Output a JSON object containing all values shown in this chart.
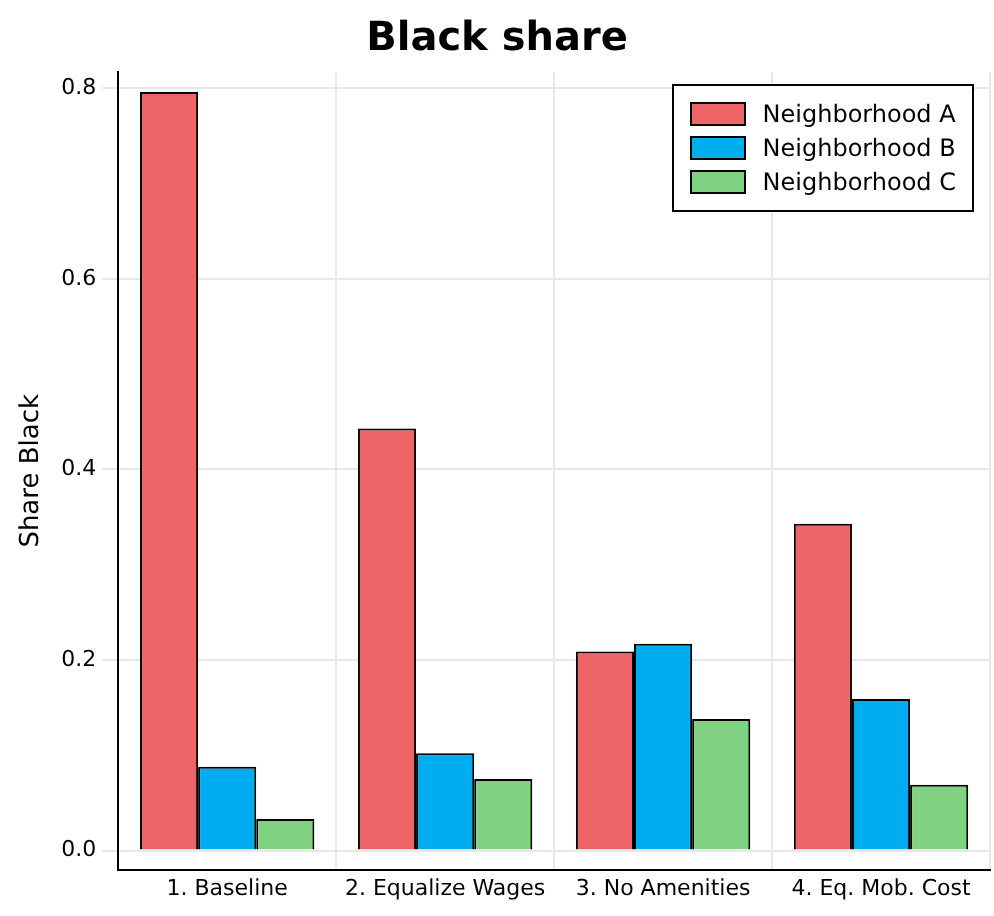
{
  "chart_data": {
    "type": "bar",
    "title": "Black share",
    "ylabel": "Share Black",
    "categories": [
      "1. Baseline",
      "2. Equalize Wages",
      "3. No Amenities",
      "4. Eq. Mob. Cost"
    ],
    "series": [
      {
        "name": "Neighborhood A",
        "color": "#ef6466",
        "values": [
          0.796,
          0.443,
          0.209,
          0.343
        ]
      },
      {
        "name": "Neighborhood B",
        "color": "#00aeef",
        "values": [
          0.088,
          0.102,
          0.217,
          0.159
        ]
      },
      {
        "name": "Neighborhood C",
        "color": "#80d180",
        "values": [
          0.033,
          0.075,
          0.138,
          0.069
        ]
      }
    ],
    "ylim": [
      -0.02,
      0.817
    ],
    "yticks": [
      {
        "value": 0,
        "label": "0.0"
      },
      0.2,
      0.4,
      0.6,
      0.8
    ],
    "grid": true,
    "legend": "top right"
  }
}
